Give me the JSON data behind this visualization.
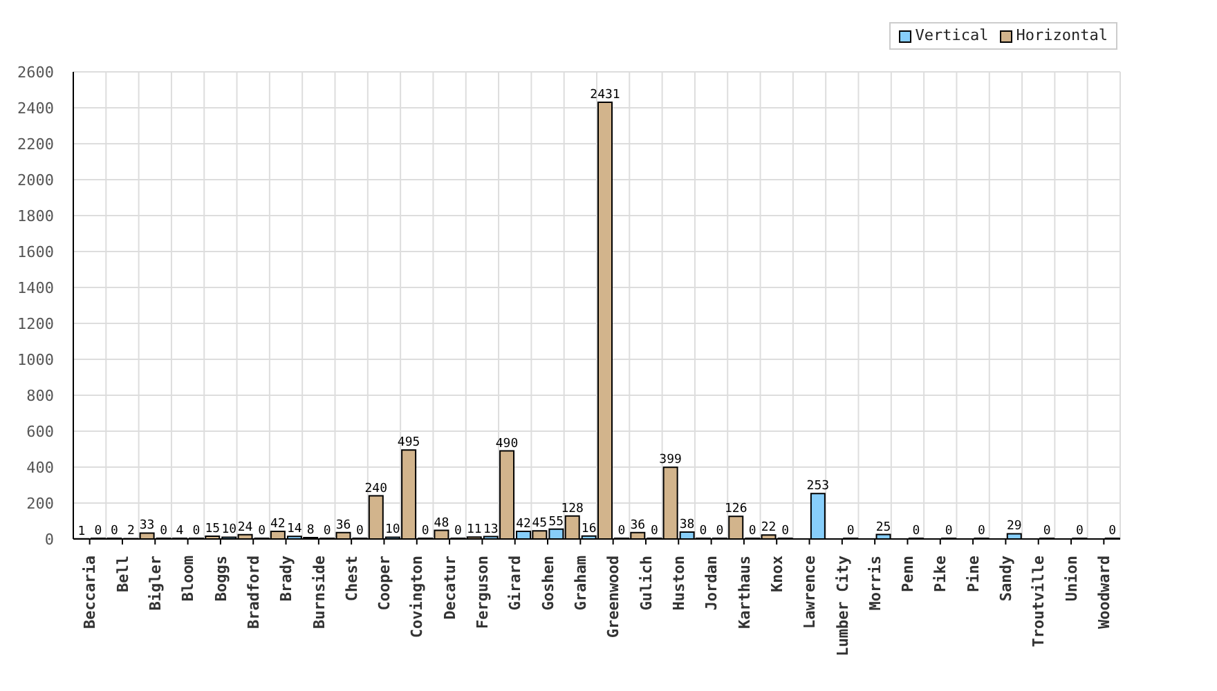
{
  "chart_data": {
    "type": "bar",
    "categories": [
      "Beccaria",
      "Bell",
      "Bigler",
      "Bloom",
      "Boggs",
      "Bradford",
      "Brady",
      "Burnside",
      "Chest",
      "Cooper",
      "Covington",
      "Decatur",
      "Ferguson",
      "Girard",
      "Goshen",
      "Graham",
      "Greenwood",
      "Gulich",
      "Huston",
      "Jordan",
      "Karthaus",
      "Knox",
      "Lawrence",
      "Lumber City",
      "Morris",
      "Penn",
      "Pike",
      "Pine",
      "Sandy",
      "Troutville",
      "Union",
      "Woodward"
    ],
    "series": [
      {
        "name": "Vertical",
        "color": "#87cefa",
        "values": [
          0,
          2,
          0,
          0,
          10,
          0,
          14,
          0,
          0,
          10,
          0,
          0,
          13,
          42,
          55,
          16,
          0,
          0,
          38,
          0,
          0,
          0,
          253,
          0,
          25,
          0,
          0,
          0,
          29,
          0,
          0,
          0
        ]
      },
      {
        "name": "Horizontal",
        "color": "#d2b48c",
        "values": [
          1,
          0,
          33,
          4,
          15,
          24,
          42,
          8,
          36,
          240,
          495,
          48,
          11,
          490,
          45,
          128,
          2431,
          36,
          399,
          0,
          126,
          22,
          null,
          null,
          null,
          null,
          null,
          null,
          null,
          null,
          null,
          null
        ]
      }
    ],
    "ylim": [
      0,
      2600
    ],
    "yticks": [
      0,
      200,
      400,
      600,
      800,
      1000,
      1200,
      1400,
      1600,
      1800,
      2000,
      2200,
      2400,
      2600
    ],
    "grid": true,
    "legend": "top right",
    "data_labels": true
  }
}
